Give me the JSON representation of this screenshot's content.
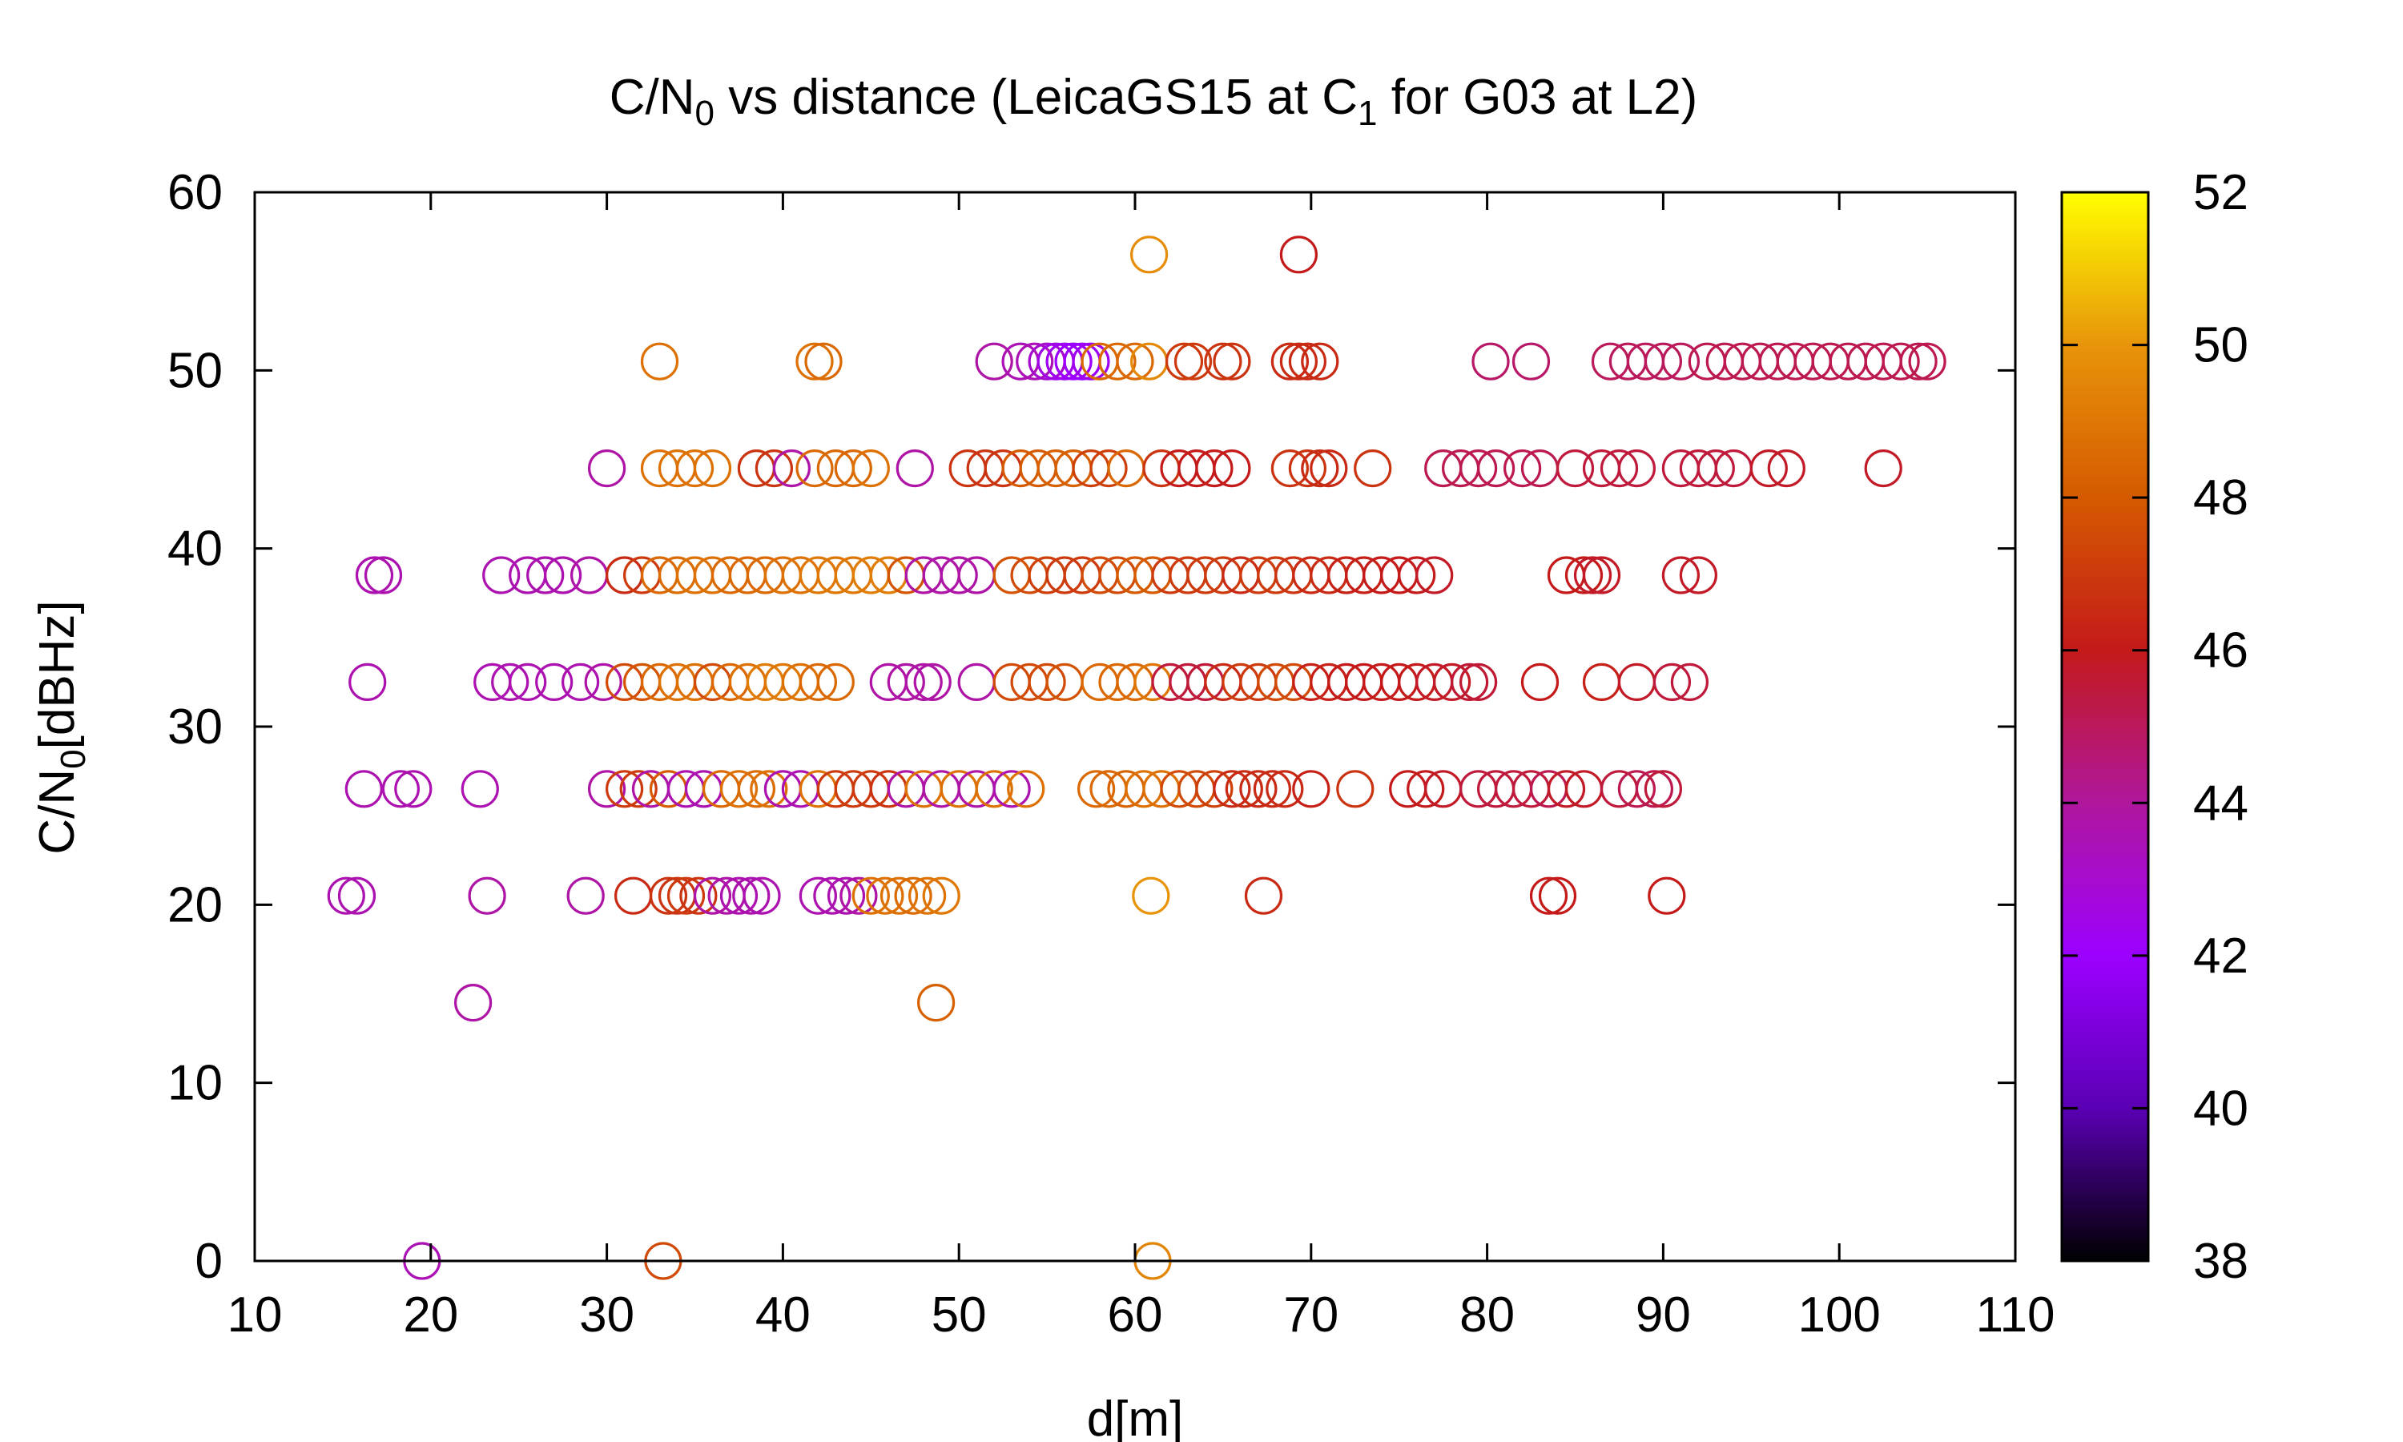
{
  "chart_data": {
    "type": "scatter",
    "title": {
      "prefix": "C/N",
      "sub1": "0",
      "mid": " vs distance (LeicaGS15 at C",
      "sub2": "1",
      "suffix": " for G03 at L2)"
    },
    "xlabel": "d[m]",
    "ylabel": {
      "main": "C/N",
      "sub": "0",
      "suffix": "[dBHz]"
    },
    "xlim": [
      10,
      110
    ],
    "ylim": [
      0,
      60
    ],
    "x_ticks": [
      "10",
      "20",
      "30",
      "40",
      "50",
      "60",
      "70",
      "80",
      "90",
      "100",
      "110"
    ],
    "y_ticks": [
      "0",
      "10",
      "20",
      "30",
      "40",
      "50",
      "60"
    ],
    "grid": false,
    "marker": "open-circle",
    "colorbar": {
      "range": [
        38,
        52
      ],
      "ticks": [
        "38",
        "40",
        "42",
        "44",
        "46",
        "48",
        "50",
        "52"
      ],
      "palette": [
        "#000000",
        "#5a00b4",
        "#9c00ff",
        "#b0179c",
        "#c41a1a",
        "#d55a00",
        "#e8940a",
        "#ffff00"
      ]
    },
    "points": [
      [
        19.5,
        0,
        43.5
      ],
      [
        33.2,
        0,
        47.5
      ],
      [
        61,
        0,
        49.5
      ],
      [
        22.4,
        14.5,
        43.8
      ],
      [
        48.7,
        14.5,
        48.2
      ],
      [
        15.2,
        20.5,
        43.6
      ],
      [
        15.8,
        20.5,
        43.6
      ],
      [
        23.2,
        20.5,
        43.8
      ],
      [
        28.8,
        20.5,
        43.8
      ],
      [
        31.5,
        20.5,
        46.5
      ],
      [
        33.5,
        20.5,
        46.8
      ],
      [
        34,
        20.5,
        46.8
      ],
      [
        34.5,
        20.5,
        47
      ],
      [
        35.2,
        20.5,
        46.8
      ],
      [
        36,
        20.5,
        43.8
      ],
      [
        36.8,
        20.5,
        43.8
      ],
      [
        37.5,
        20.5,
        43.6
      ],
      [
        38.2,
        20.5,
        43.6
      ],
      [
        38.8,
        20.5,
        43.6
      ],
      [
        42,
        20.5,
        43.6
      ],
      [
        42.8,
        20.5,
        43.6
      ],
      [
        43.6,
        20.5,
        43.6
      ],
      [
        44.3,
        20.5,
        43.8
      ],
      [
        45,
        20.5,
        48.8
      ],
      [
        45.8,
        20.5,
        48.8
      ],
      [
        46.6,
        20.5,
        48.8
      ],
      [
        47.4,
        20.5,
        48.6
      ],
      [
        48.2,
        20.5,
        48.8
      ],
      [
        49,
        20.5,
        49
      ],
      [
        60.9,
        20.5,
        50
      ],
      [
        67.3,
        20.5,
        46.5
      ],
      [
        83.5,
        20.5,
        46
      ],
      [
        84,
        20.5,
        46
      ],
      [
        90.2,
        20.5,
        46
      ],
      [
        16.2,
        26.5,
        43.6
      ],
      [
        18.3,
        26.5,
        43.6
      ],
      [
        19,
        26.5,
        43.6
      ],
      [
        22.8,
        26.5,
        43.6
      ],
      [
        30,
        26.5,
        43.8
      ],
      [
        31,
        26.5,
        47
      ],
      [
        31.8,
        26.5,
        47
      ],
      [
        32.5,
        26.5,
        43.8
      ],
      [
        33.5,
        26.5,
        48
      ],
      [
        34.5,
        26.5,
        43.6
      ],
      [
        35.5,
        26.5,
        43.6
      ],
      [
        36.5,
        26.5,
        48.5
      ],
      [
        37.5,
        26.5,
        48.8
      ],
      [
        38.5,
        26.5,
        48.6
      ],
      [
        39.2,
        26.5,
        48.8
      ],
      [
        40,
        26.5,
        43.6
      ],
      [
        41,
        26.5,
        43.6
      ],
      [
        42,
        26.5,
        48.8
      ],
      [
        43,
        26.5,
        47
      ],
      [
        44,
        26.5,
        47
      ],
      [
        45,
        26.5,
        47
      ],
      [
        46,
        26.5,
        46.8
      ],
      [
        47,
        26.5,
        43.8
      ],
      [
        48,
        26.5,
        48.8
      ],
      [
        49,
        26.5,
        43.8
      ],
      [
        50,
        26.5,
        48.8
      ],
      [
        51,
        26.5,
        43.8
      ],
      [
        52,
        26.5,
        48.8
      ],
      [
        53,
        26.5,
        43.6
      ],
      [
        53.8,
        26.5,
        48.8
      ],
      [
        57.8,
        26.5,
        48.5
      ],
      [
        58.5,
        26.5,
        48.5
      ],
      [
        59.5,
        26.5,
        48.3
      ],
      [
        60.5,
        26.5,
        48.8
      ],
      [
        61.5,
        26.5,
        48.8
      ],
      [
        62.5,
        26.5,
        47.5
      ],
      [
        63.5,
        26.5,
        47.5
      ],
      [
        64.5,
        26.5,
        47.2
      ],
      [
        65.5,
        26.5,
        46.5
      ],
      [
        66.2,
        26.5,
        46.5
      ],
      [
        67,
        26.5,
        46.5
      ],
      [
        67.8,
        26.5,
        46.5
      ],
      [
        68.5,
        26.5,
        46.5
      ],
      [
        70,
        26.5,
        46.2
      ],
      [
        72.5,
        26.5,
        46.8
      ],
      [
        75.5,
        26.5,
        46
      ],
      [
        76.5,
        26.5,
        46
      ],
      [
        77.5,
        26.5,
        45.8
      ],
      [
        79.5,
        26.5,
        45.5
      ],
      [
        80.5,
        26.5,
        45.5
      ],
      [
        81.5,
        26.5,
        45.5
      ],
      [
        82.5,
        26.5,
        45.5
      ],
      [
        83.5,
        26.5,
        45.2
      ],
      [
        84.5,
        26.5,
        45.8
      ],
      [
        85.5,
        26.5,
        45.8
      ],
      [
        87.5,
        26.5,
        45.5
      ],
      [
        88.5,
        26.5,
        45.2
      ],
      [
        89.5,
        26.5,
        45.2
      ],
      [
        90,
        26.5,
        45.5
      ],
      [
        16.4,
        32.5,
        43.6
      ],
      [
        23.5,
        32.5,
        43.6
      ],
      [
        24.5,
        32.5,
        43.6
      ],
      [
        25.5,
        32.5,
        43.6
      ],
      [
        27,
        32.5,
        43.6
      ],
      [
        28.5,
        32.5,
        43.6
      ],
      [
        29.8,
        32.5,
        43.8
      ],
      [
        31,
        32.5,
        47.5
      ],
      [
        32,
        32.5,
        47.8
      ],
      [
        33,
        32.5,
        48.5
      ],
      [
        34,
        32.5,
        48.8
      ],
      [
        35,
        32.5,
        48.8
      ],
      [
        36,
        32.5,
        47.5
      ],
      [
        37,
        32.5,
        48.5
      ],
      [
        38,
        32.5,
        48.8
      ],
      [
        39,
        32.5,
        49.2
      ],
      [
        40,
        32.5,
        49
      ],
      [
        41,
        32.5,
        48.8
      ],
      [
        42,
        32.5,
        48.5
      ],
      [
        43,
        32.5,
        48.5
      ],
      [
        46,
        32.5,
        43.8
      ],
      [
        47,
        32.5,
        43.8
      ],
      [
        48,
        32.5,
        43.8
      ],
      [
        48.5,
        32.5,
        43.8
      ],
      [
        51,
        32.5,
        43.8
      ],
      [
        53,
        32.5,
        47.5
      ],
      [
        54,
        32.5,
        47.5
      ],
      [
        55,
        32.5,
        47.5
      ],
      [
        56,
        32.5,
        47.8
      ],
      [
        58,
        32.5,
        48.5
      ],
      [
        59,
        32.5,
        48.5
      ],
      [
        60,
        32.5,
        48.5
      ],
      [
        61,
        32.5,
        49
      ],
      [
        62,
        32.5,
        45.5
      ],
      [
        63,
        32.5,
        45.5
      ],
      [
        64,
        32.5,
        45.5
      ],
      [
        65,
        32.5,
        46.5
      ],
      [
        66,
        32.5,
        47
      ],
      [
        67,
        32.5,
        47
      ],
      [
        68,
        32.5,
        47.5
      ],
      [
        69,
        32.5,
        47.5
      ],
      [
        70,
        32.5,
        46.2
      ],
      [
        71,
        32.5,
        46.2
      ],
      [
        72,
        32.5,
        46
      ],
      [
        73,
        32.5,
        46
      ],
      [
        74,
        32.5,
        46
      ],
      [
        75,
        32.5,
        46
      ],
      [
        76,
        32.5,
        46
      ],
      [
        77,
        32.5,
        45.8
      ],
      [
        78,
        32.5,
        45.8
      ],
      [
        79,
        32.5,
        45.6
      ],
      [
        79.5,
        32.5,
        45.6
      ],
      [
        83,
        32.5,
        46
      ],
      [
        86.5,
        32.5,
        46.2
      ],
      [
        88.5,
        32.5,
        45.8
      ],
      [
        90.5,
        32.5,
        45.5
      ],
      [
        91.5,
        32.5,
        45.5
      ],
      [
        16.8,
        38.5,
        43.6
      ],
      [
        17.3,
        38.5,
        43.6
      ],
      [
        24,
        38.5,
        43.6
      ],
      [
        25.5,
        38.5,
        43.6
      ],
      [
        26.5,
        38.5,
        43.6
      ],
      [
        27.5,
        38.5,
        43.6
      ],
      [
        29,
        38.5,
        43.8
      ],
      [
        31,
        38.5,
        46.5
      ],
      [
        32,
        38.5,
        47
      ],
      [
        33,
        38.5,
        48.5
      ],
      [
        34,
        38.5,
        48.6
      ],
      [
        35,
        38.5,
        48.8
      ],
      [
        36,
        38.5,
        48.8
      ],
      [
        37,
        38.5,
        48.5
      ],
      [
        38,
        38.5,
        48.5
      ],
      [
        39,
        38.5,
        48.5
      ],
      [
        40,
        38.5,
        48.8
      ],
      [
        41,
        38.5,
        48.8
      ],
      [
        42,
        38.5,
        49
      ],
      [
        43,
        38.5,
        49
      ],
      [
        44,
        38.5,
        49
      ],
      [
        45,
        38.5,
        49.2
      ],
      [
        46,
        38.5,
        49.2
      ],
      [
        47,
        38.5,
        47.8
      ],
      [
        48,
        38.5,
        43.8
      ],
      [
        49,
        38.5,
        43.8
      ],
      [
        50,
        38.5,
        43.8
      ],
      [
        51,
        38.5,
        43.8
      ],
      [
        53,
        38.5,
        47.8
      ],
      [
        54,
        38.5,
        47.5
      ],
      [
        55,
        38.5,
        47.2
      ],
      [
        56,
        38.5,
        47
      ],
      [
        57,
        38.5,
        47
      ],
      [
        58,
        38.5,
        47.5
      ],
      [
        59,
        38.5,
        47.5
      ],
      [
        60,
        38.5,
        48
      ],
      [
        61,
        38.5,
        48
      ],
      [
        62,
        38.5,
        47
      ],
      [
        63,
        38.5,
        47
      ],
      [
        64,
        38.5,
        47
      ],
      [
        65,
        38.5,
        47
      ],
      [
        66,
        38.5,
        46.5
      ],
      [
        67,
        38.5,
        47
      ],
      [
        68,
        38.5,
        47
      ],
      [
        69,
        38.5,
        46.8
      ],
      [
        70,
        38.5,
        46.5
      ],
      [
        71,
        38.5,
        46.5
      ],
      [
        72,
        38.5,
        46.2
      ],
      [
        73,
        38.5,
        46.2
      ],
      [
        74,
        38.5,
        46
      ],
      [
        75,
        38.5,
        46
      ],
      [
        76,
        38.5,
        46
      ],
      [
        77,
        38.5,
        45.8
      ],
      [
        84.5,
        38.5,
        46
      ],
      [
        85.5,
        38.5,
        46
      ],
      [
        86,
        38.5,
        45.8
      ],
      [
        86.5,
        38.5,
        45.8
      ],
      [
        91,
        38.5,
        45.8
      ],
      [
        92,
        38.5,
        45.8
      ],
      [
        30,
        44.5,
        43.8
      ],
      [
        33,
        44.5,
        48.8
      ],
      [
        34,
        44.5,
        48.8
      ],
      [
        35,
        44.5,
        48.8
      ],
      [
        36,
        44.5,
        48.8
      ],
      [
        38.5,
        44.5,
        46.8
      ],
      [
        39.5,
        44.5,
        46.8
      ],
      [
        40.5,
        44.5,
        43.8
      ],
      [
        41.8,
        44.5,
        48.5
      ],
      [
        43,
        44.5,
        48.5
      ],
      [
        44,
        44.5,
        48.5
      ],
      [
        45,
        44.5,
        48.8
      ],
      [
        47.5,
        44.5,
        43.8
      ],
      [
        50.5,
        44.5,
        46.8
      ],
      [
        51.5,
        44.5,
        46.8
      ],
      [
        52.5,
        44.5,
        46.8
      ],
      [
        53.5,
        44.5,
        48
      ],
      [
        54.5,
        44.5,
        48
      ],
      [
        55.5,
        44.5,
        48.2
      ],
      [
        56.5,
        44.5,
        48.2
      ],
      [
        57.5,
        44.5,
        47.2
      ],
      [
        58.5,
        44.5,
        47.2
      ],
      [
        59.5,
        44.5,
        48.5
      ],
      [
        61.5,
        44.5,
        46.8
      ],
      [
        62.5,
        44.5,
        46
      ],
      [
        63.5,
        44.5,
        46
      ],
      [
        64.5,
        44.5,
        46
      ],
      [
        65.5,
        44.5,
        46
      ],
      [
        68.8,
        44.5,
        46.8
      ],
      [
        69.8,
        44.5,
        46.8
      ],
      [
        70.5,
        44.5,
        46.5
      ],
      [
        71,
        44.5,
        46.5
      ],
      [
        73.5,
        44.5,
        46.8
      ],
      [
        77.5,
        44.5,
        45.2
      ],
      [
        78.5,
        44.5,
        45.2
      ],
      [
        79.5,
        44.5,
        45.2
      ],
      [
        80.5,
        44.5,
        45.2
      ],
      [
        82,
        44.5,
        45.2
      ],
      [
        83,
        44.5,
        45.2
      ],
      [
        85,
        44.5,
        45.5
      ],
      [
        86.5,
        44.5,
        45.5
      ],
      [
        87.5,
        44.5,
        45.5
      ],
      [
        88.5,
        44.5,
        45.5
      ],
      [
        91,
        44.5,
        45.5
      ],
      [
        92,
        44.5,
        45.5
      ],
      [
        93,
        44.5,
        45.5
      ],
      [
        94,
        44.5,
        45.5
      ],
      [
        96,
        44.5,
        45.8
      ],
      [
        97,
        44.5,
        45.8
      ],
      [
        102.5,
        44.5,
        45.8
      ],
      [
        33,
        50.5,
        48.8
      ],
      [
        41.8,
        50.5,
        48.8
      ],
      [
        42.3,
        50.5,
        48.5
      ],
      [
        52,
        50.5,
        43.8
      ],
      [
        53.5,
        50.5,
        43.5
      ],
      [
        54.3,
        50.5,
        43.5
      ],
      [
        55,
        50.5,
        43
      ],
      [
        55.5,
        50.5,
        42.5
      ],
      [
        56,
        50.5,
        42.3
      ],
      [
        56.5,
        50.5,
        42
      ],
      [
        57,
        50.5,
        42
      ],
      [
        57.5,
        50.5,
        42.3
      ],
      [
        58,
        50.5,
        48.5
      ],
      [
        59,
        50.5,
        48.5
      ],
      [
        60,
        50.5,
        48.5
      ],
      [
        60.8,
        50.5,
        49.6
      ],
      [
        62.8,
        50.5,
        47
      ],
      [
        63.3,
        50.5,
        47
      ],
      [
        65,
        50.5,
        46.8
      ],
      [
        65.5,
        50.5,
        46.8
      ],
      [
        68.8,
        50.5,
        46.5
      ],
      [
        69.3,
        50.5,
        46.5
      ],
      [
        69.8,
        50.5,
        46.5
      ],
      [
        70.5,
        50.5,
        46.5
      ],
      [
        80.2,
        50.5,
        44.8
      ],
      [
        82.5,
        50.5,
        44.8
      ],
      [
        87,
        50.5,
        45
      ],
      [
        88,
        50.5,
        45
      ],
      [
        89,
        50.5,
        45
      ],
      [
        90,
        50.5,
        45
      ],
      [
        91,
        50.5,
        45
      ],
      [
        92.5,
        50.5,
        45.2
      ],
      [
        93.5,
        50.5,
        45.2
      ],
      [
        94.5,
        50.5,
        45.2
      ],
      [
        95.5,
        50.5,
        45.2
      ],
      [
        96.5,
        50.5,
        45.2
      ],
      [
        97.5,
        50.5,
        45.2
      ],
      [
        98.5,
        50.5,
        45.2
      ],
      [
        99.5,
        50.5,
        45.2
      ],
      [
        100.5,
        50.5,
        45.2
      ],
      [
        101.5,
        50.5,
        45.2
      ],
      [
        102.5,
        50.5,
        45.2
      ],
      [
        103.5,
        50.5,
        45.2
      ],
      [
        104.5,
        50.5,
        45.2
      ],
      [
        105,
        50.5,
        45.2
      ],
      [
        60.8,
        56.5,
        49.8
      ],
      [
        69.3,
        56.5,
        46
      ]
    ]
  }
}
